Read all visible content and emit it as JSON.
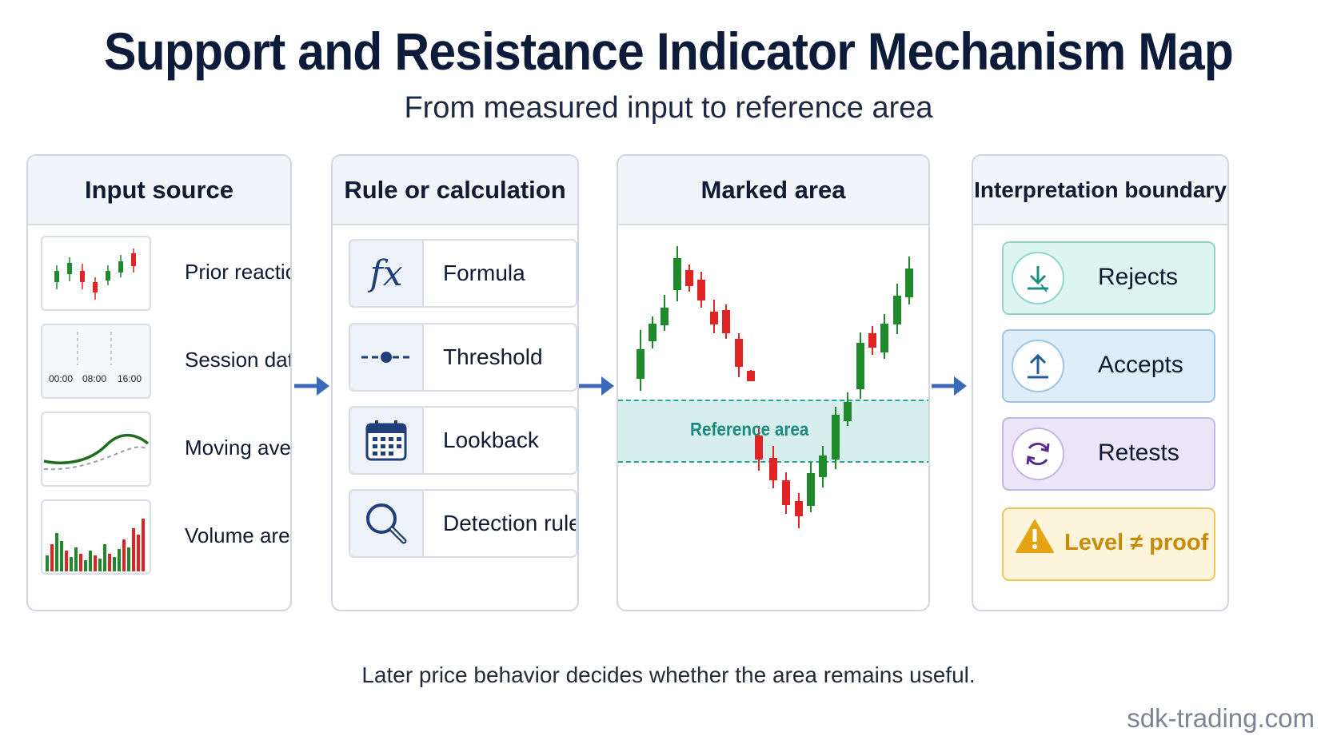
{
  "title": "Support and Resistance Indicator Mechanism Map",
  "subtitle": "From measured input to reference area",
  "panels": [
    {
      "header": "Input source"
    },
    {
      "header": "Rule or calculation"
    },
    {
      "header": "Marked area"
    },
    {
      "header": "Interpretation boundary"
    }
  ],
  "inputs": [
    {
      "label": "Prior reactions",
      "icon": "candlestick-thumbnail-icon"
    },
    {
      "label": "Session data",
      "icon": "session-timeline-icon",
      "ticks": [
        "00:00",
        "08:00",
        "16:00"
      ]
    },
    {
      "label": "Moving average",
      "icon": "moving-average-icon"
    },
    {
      "label": "Volume area",
      "icon": "volume-bars-icon"
    }
  ],
  "rules": [
    {
      "label": "Formula",
      "icon": "fx-icon",
      "glyph": "fx"
    },
    {
      "label": "Threshold",
      "icon": "threshold-icon"
    },
    {
      "label": "Lookback",
      "icon": "calendar-icon"
    },
    {
      "label": "Detection rule",
      "icon": "magnifier-icon"
    }
  ],
  "marked_area": {
    "reference_label": "Reference area"
  },
  "interpretations": [
    {
      "label": "Rejects",
      "icon": "download-arrow-icon",
      "bg": "#ddf5f1",
      "border": "#8fd6c9",
      "accent": "#1d8f7c"
    },
    {
      "label": "Accepts",
      "icon": "upload-arrow-icon",
      "bg": "#dfedf9",
      "border": "#9ec4e6",
      "accent": "#245c9b"
    },
    {
      "label": "Retests",
      "icon": "cycle-arrows-icon",
      "bg": "#ece5f7",
      "border": "#c6b6e6",
      "accent": "#5a2d91"
    },
    {
      "label": "Level ≠ proof",
      "icon": "warning-icon",
      "bg": "#fdf4dc",
      "border": "#f0c55a",
      "accent": "#c98a06"
    }
  ],
  "colors": {
    "bull": "#1f8a2c",
    "bear": "#e02424",
    "arrow": "#3b6bb8",
    "zone": "#2aa39a"
  },
  "footnote": "Later price behavior decides whether the area remains useful.",
  "brand": "sdk-trading.com"
}
